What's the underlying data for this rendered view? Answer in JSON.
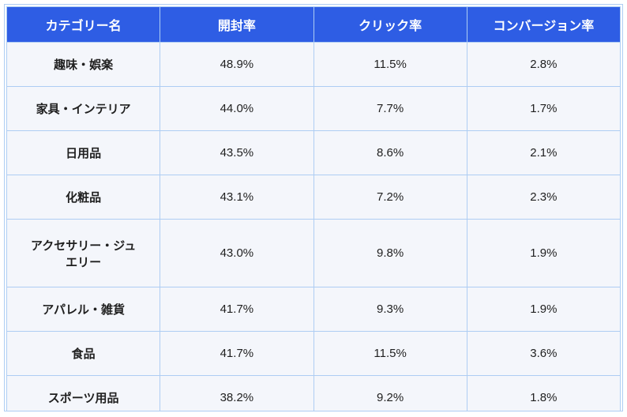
{
  "chart_data": {
    "type": "table",
    "columns": [
      "カテゴリー名",
      "開封率",
      "クリック率",
      "コンバージョン率"
    ],
    "rows": [
      [
        "趣味・娯楽",
        "48.9%",
        "11.5%",
        "2.8%"
      ],
      [
        "家具・インテリア",
        "44.0%",
        "7.7%",
        "1.7%"
      ],
      [
        "日用品",
        "43.5%",
        "8.6%",
        "2.1%"
      ],
      [
        "化粧品",
        "43.1%",
        "7.2%",
        "2.3%"
      ],
      [
        "アクセサリー・ジュエリー",
        "43.0%",
        "9.8%",
        "1.9%"
      ],
      [
        "アパレル・雑貨",
        "41.7%",
        "9.3%",
        "1.9%"
      ],
      [
        "食品",
        "41.7%",
        "11.5%",
        "3.6%"
      ],
      [
        "スポーツ用品",
        "38.2%",
        "9.2%",
        "1.8%"
      ]
    ],
    "title": "",
    "legend": [],
    "layout_hints": {
      "header_position": "top",
      "all_cells_centered": true,
      "category_column_bold": true,
      "partial_next_header_visible_at_bottom": true
    }
  },
  "colors": {
    "header-bg": "#2e5de4",
    "header-text": "#ffffff",
    "cell-bg": "#f4f6fb",
    "cell-text": "#1f1f1f",
    "border": "#aecdf3",
    "next-header-sliver": "#7fa8ea"
  }
}
